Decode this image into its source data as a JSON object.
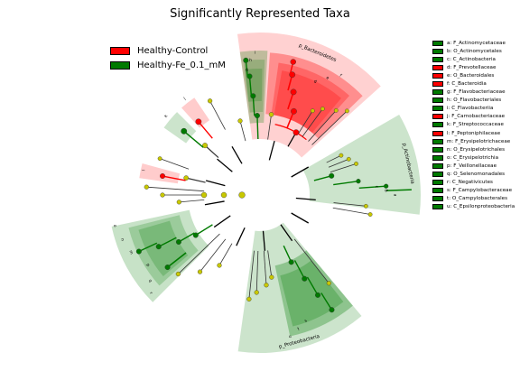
{
  "title": "Significantly Represented Taxa",
  "colors": {
    "control": "#ff0000",
    "fe": "#007a00",
    "node_ns": "#c8c800"
  },
  "legend": [
    {
      "label": "Healthy-Control",
      "group": "control"
    },
    {
      "label": "Healthy-Fe_0.1_mM",
      "group": "fe"
    }
  ],
  "taxa": [
    {
      "key": "a",
      "name": "F_Actinomycetaceae",
      "group": "fe"
    },
    {
      "key": "b",
      "name": "O_Actinomycetales",
      "group": "fe"
    },
    {
      "key": "c",
      "name": "C_Actinobacteria",
      "group": "fe"
    },
    {
      "key": "d",
      "name": "F_Prevotellaceae",
      "group": "control"
    },
    {
      "key": "e",
      "name": "O_Bacteroidales",
      "group": "control"
    },
    {
      "key": "f",
      "name": "C_Bacteroidia",
      "group": "control"
    },
    {
      "key": "g",
      "name": "F_Flavobacteriaceae",
      "group": "fe"
    },
    {
      "key": "h",
      "name": "O_Flavobacteriales",
      "group": "fe"
    },
    {
      "key": "i",
      "name": "C_Flavobacteriia",
      "group": "fe"
    },
    {
      "key": "j",
      "name": "F_Carnobacteriaceae",
      "group": "control"
    },
    {
      "key": "k",
      "name": "F_Streptococcaceae",
      "group": "fe"
    },
    {
      "key": "l",
      "name": "F_Peptoniphilaceae",
      "group": "control"
    },
    {
      "key": "m",
      "name": "F_Erysipelotrichaceae",
      "group": "fe"
    },
    {
      "key": "n",
      "name": "O_Erysipelotrichales",
      "group": "fe"
    },
    {
      "key": "o",
      "name": "C_Erysipelotrichia",
      "group": "fe"
    },
    {
      "key": "p",
      "name": "F_Veillonellaceae",
      "group": "fe"
    },
    {
      "key": "q",
      "name": "O_Selenomonadales",
      "group": "fe"
    },
    {
      "key": "r",
      "name": "C_Negativicutes",
      "group": "fe"
    },
    {
      "key": "s",
      "name": "F_Campylobacteraceae",
      "group": "fe"
    },
    {
      "key": "t",
      "name": "O_Campylobacterales",
      "group": "fe"
    },
    {
      "key": "u",
      "name": "C_Epsilonproteobacteria",
      "group": "fe"
    }
  ],
  "clades": [
    {
      "name": "p_Bacteroidetes",
      "group": "control"
    },
    {
      "name": "p_Actinobacteria",
      "group": "fe"
    },
    {
      "name": "p_Proteobacteria",
      "group": "fe"
    }
  ]
}
